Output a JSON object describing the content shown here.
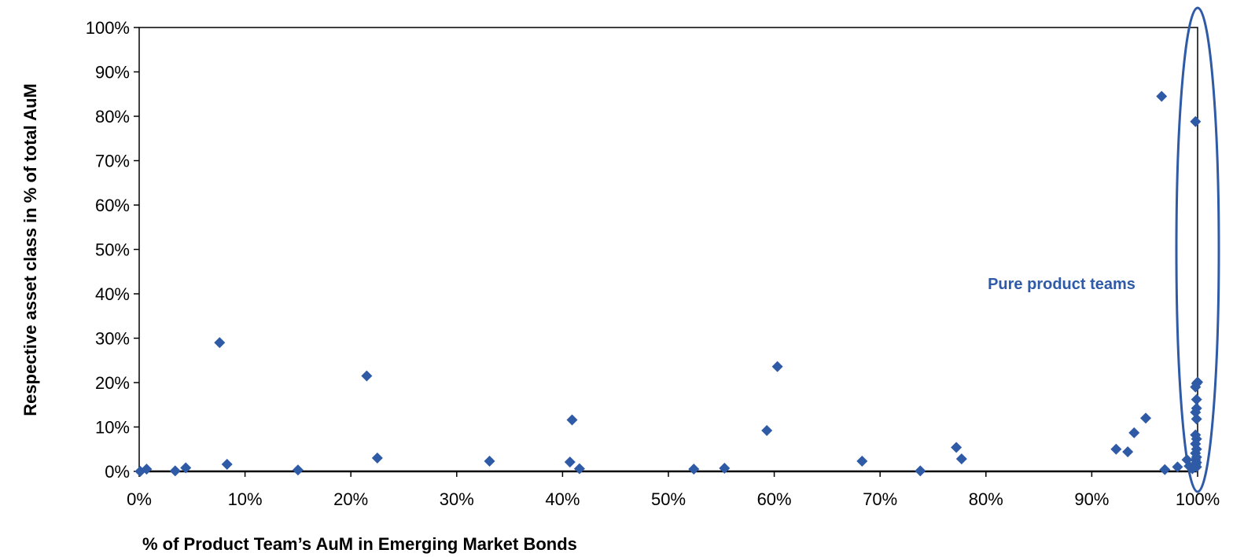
{
  "chart_data": {
    "type": "scatter",
    "xlabel": "% of Product Team’s AuM in Emerging Market Bonds",
    "ylabel": "Respective asset class in % of total AuM",
    "xlim": [
      0,
      100
    ],
    "ylim": [
      0,
      100
    ],
    "x_ticks": [
      "0%",
      "10%",
      "20%",
      "30%",
      "40%",
      "50%",
      "60%",
      "70%",
      "80%",
      "90%",
      "100%"
    ],
    "y_ticks": [
      "0%",
      "10%",
      "20%",
      "30%",
      "40%",
      "50%",
      "60%",
      "70%",
      "80%",
      "90%",
      "100%"
    ],
    "grid": false,
    "legend": "none",
    "marker": "diamond",
    "series": [
      {
        "color": "#2E5AA6",
        "points": [
          [
            0.1,
            0.0
          ],
          [
            0.7,
            0.5
          ],
          [
            3.4,
            0.1
          ],
          [
            4.4,
            0.8
          ],
          [
            7.6,
            29.0
          ],
          [
            8.3,
            1.6
          ],
          [
            15.0,
            0.3
          ],
          [
            21.5,
            21.5
          ],
          [
            22.5,
            3.0
          ],
          [
            33.1,
            2.3
          ],
          [
            40.7,
            2.1
          ],
          [
            40.9,
            11.6
          ],
          [
            41.6,
            0.6
          ],
          [
            52.4,
            0.5
          ],
          [
            55.3,
            0.7
          ],
          [
            59.3,
            9.2
          ],
          [
            60.3,
            23.6
          ],
          [
            68.3,
            2.3
          ],
          [
            73.8,
            0.1
          ],
          [
            77.2,
            5.4
          ],
          [
            77.7,
            2.8
          ],
          [
            92.3,
            5.0
          ],
          [
            93.4,
            4.4
          ],
          [
            94.0,
            8.7
          ],
          [
            95.1,
            12.0
          ],
          [
            96.6,
            84.5
          ],
          [
            96.9,
            0.4
          ],
          [
            98.1,
            1.0
          ],
          [
            99.0,
            2.6
          ],
          [
            99.2,
            1.2
          ],
          [
            99.5,
            0.6
          ],
          [
            99.8,
            78.8
          ],
          [
            99.9,
            19.8
          ],
          [
            100.0,
            20.1
          ],
          [
            99.8,
            19.0
          ],
          [
            99.9,
            16.2
          ],
          [
            99.9,
            14.2
          ],
          [
            99.8,
            13.3
          ],
          [
            99.9,
            11.8
          ],
          [
            99.8,
            8.2
          ],
          [
            99.9,
            7.3
          ],
          [
            99.8,
            6.2
          ],
          [
            99.9,
            5.0
          ],
          [
            99.8,
            4.1
          ],
          [
            99.9,
            3.2
          ],
          [
            99.8,
            2.6
          ],
          [
            99.9,
            2.0
          ],
          [
            99.8,
            1.5
          ],
          [
            99.9,
            1.0
          ]
        ]
      }
    ],
    "annotation": {
      "text": "Pure product teams",
      "color": "#2E5AA6",
      "highlight_x": 100
    }
  }
}
